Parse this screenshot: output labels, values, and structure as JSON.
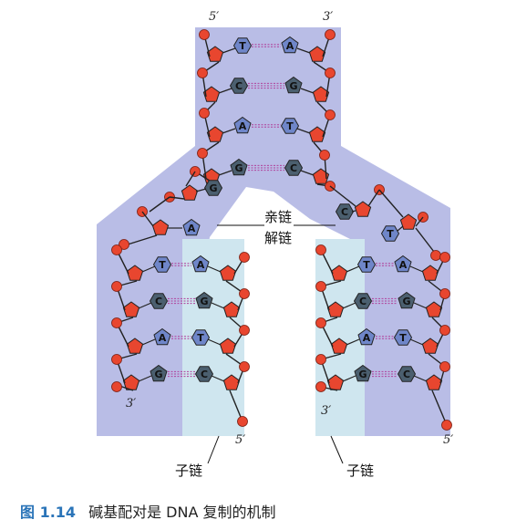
{
  "labels": {
    "top_left_end": "5′",
    "top_right_end": "3′",
    "parent_strand": "亲链",
    "unwound_strand": "解链",
    "left_daughter_3": "3′",
    "left_daughter_5": "5′",
    "right_daughter_3": "3′",
    "right_daughter_5": "5′",
    "left_daughter": "子链",
    "right_daughter": "子链"
  },
  "caption": {
    "number": "图 1.14",
    "text": "碱基配对是 DNA 复制的机制"
  },
  "pairs": {
    "top": [
      [
        "T",
        "A"
      ],
      [
        "C",
        "G"
      ],
      [
        "A",
        "T"
      ],
      [
        "G",
        "C"
      ]
    ],
    "fork_left": [
      "G",
      "A"
    ],
    "fork_right": [
      "C",
      "T"
    ],
    "left_daughter": [
      [
        "T",
        "A"
      ],
      [
        "C",
        "G"
      ],
      [
        "A",
        "T"
      ],
      [
        "G",
        "C"
      ]
    ],
    "right_daughter": [
      [
        "T",
        "A"
      ],
      [
        "C",
        "G"
      ],
      [
        "A",
        "T"
      ],
      [
        "G",
        "C"
      ]
    ]
  },
  "colors": {
    "background_band": "#b9bde6",
    "daughter_band": "#cfe6ef",
    "sugar": "#e8462f",
    "phosphate": "#e8462f",
    "backbone": "#222222",
    "base_light": "#6f86c9",
    "base_dark": "#4b5f6f",
    "h_bond": "#b0409a"
  }
}
